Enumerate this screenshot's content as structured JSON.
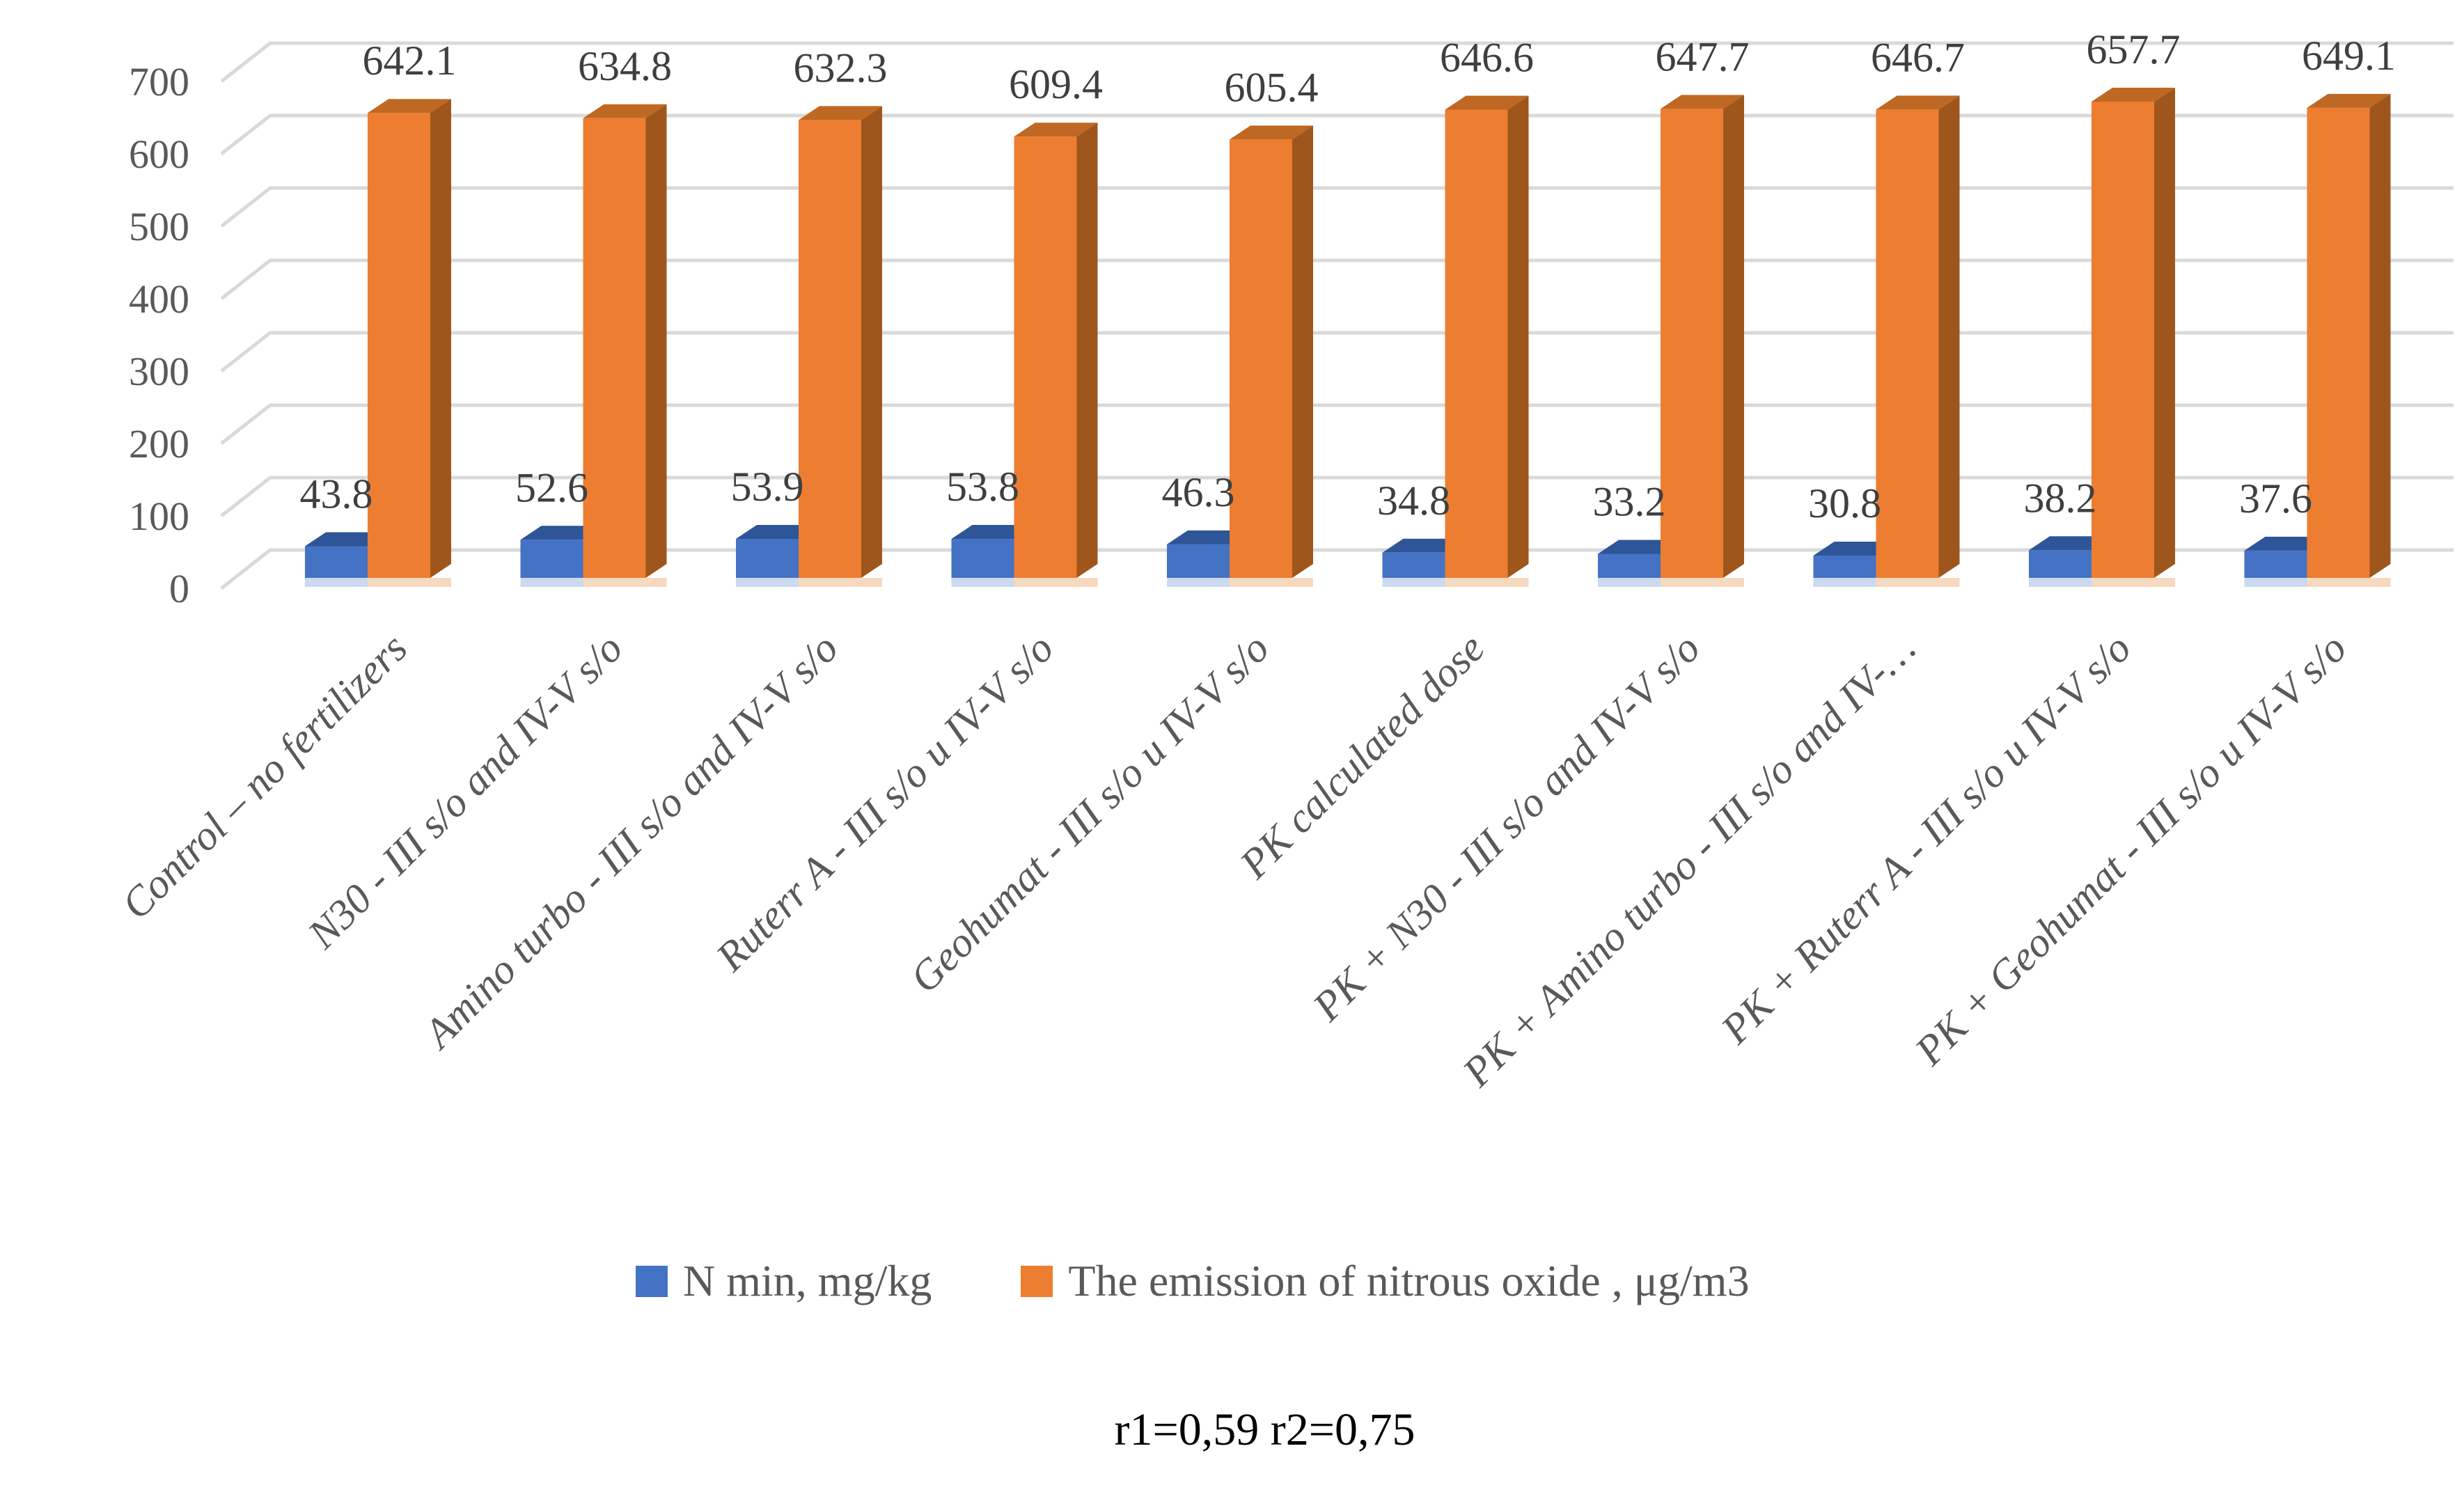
{
  "chart_data": {
    "type": "bar",
    "variant": "3d-clustered-column",
    "title": "",
    "xlabel": "",
    "ylabel": "",
    "categories": [
      "Control – no fertilizers",
      "N30 - III s/o and IV-V s/o",
      "Amino turbo - III s/o and IV-V s/o",
      "Ruterr A - III s/o и IV-V s/o",
      "Geohumat  - III s/o и IV-V s/o",
      "PK calculated dose",
      "PK + N30 - III s/o and IV-V s/o",
      "PK + Amino turbo - III s/o and IV-…",
      "PK + Ruterr A - III s/o и IV-V s/o",
      "PK + Geohumat  - III s/o и IV-V s/o"
    ],
    "series": [
      {
        "name": "N min, mg/kg",
        "color": "#4472C4",
        "values": [
          43.8,
          52.6,
          53.9,
          53.8,
          46.3,
          34.8,
          33.2,
          30.8,
          38.2,
          37.6
        ]
      },
      {
        "name": "The emission of nitrous oxide , μg/m3",
        "color": "#ED7D31",
        "values": [
          642.1,
          634.8,
          632.3,
          609.4,
          605.4,
          646.6,
          647.7,
          646.7,
          657.7,
          649.1
        ]
      }
    ],
    "y_ticks": [
      0,
      100,
      200,
      300,
      400,
      500,
      600,
      700
    ],
    "ylim": [
      0,
      700
    ],
    "grid": true,
    "legend_position": "bottom",
    "annotation": "r1=0,59 r2=0,75"
  },
  "colors": {
    "background": "#FFFFFF",
    "gridline": "#D9D9D9",
    "axis_text": "#595959",
    "value_text": "#3F3F3F",
    "category_text": "#595959",
    "legend_text": "#595959",
    "annotation_text": "#000000",
    "blue_front": "#4472C4",
    "blue_top": "#2E5597",
    "blue_strip": "#CBD9F1",
    "orange_front": "#ED7D31",
    "orange_top": "#BE6823",
    "orange_side": "#9E561C",
    "orange_strip": "#F7D9BF"
  }
}
